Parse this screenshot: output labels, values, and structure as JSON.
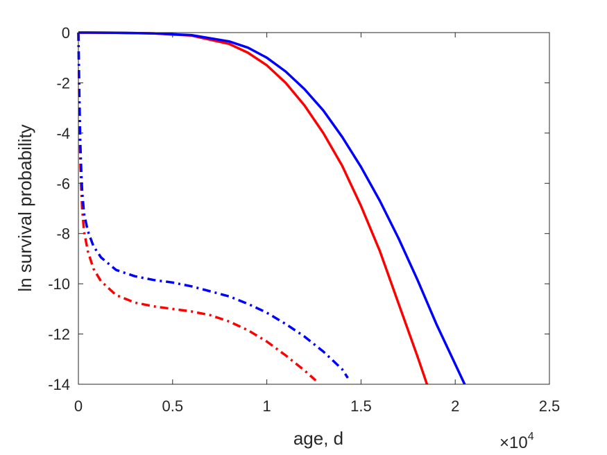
{
  "chart_data": {
    "type": "line",
    "xlabel": "age, d",
    "ylabel": "ln survival probability",
    "x_multiplier": {
      "base": "×10",
      "exponent": "4"
    },
    "xlim": [
      0,
      25000
    ],
    "ylim": [
      -14,
      0
    ],
    "xticks": [
      0,
      5000,
      10000,
      15000,
      20000,
      25000
    ],
    "xtick_labels": [
      "0",
      "0.5",
      "1",
      "1.5",
      "2",
      "2.5"
    ],
    "yticks": [
      0,
      -2,
      -4,
      -6,
      -8,
      -10,
      -12,
      -14
    ],
    "ytick_labels": [
      "0",
      "-2",
      "-4",
      "-6",
      "-8",
      "-10",
      "-12",
      "-14"
    ],
    "grid": false,
    "series": [
      {
        "color": "#ff0000",
        "style": "solid",
        "x": [
          0,
          2000,
          4000,
          6000,
          8000,
          9000,
          10000,
          11000,
          12000,
          13000,
          14000,
          15000,
          16000,
          17000,
          18000,
          18500
        ],
        "y": [
          0,
          -0.005,
          -0.03,
          -0.12,
          -0.45,
          -0.8,
          -1.3,
          -2.0,
          -2.9,
          -4.0,
          -5.3,
          -6.9,
          -8.7,
          -10.8,
          -12.9,
          -14.0
        ]
      },
      {
        "color": "#0000ff",
        "style": "solid",
        "x": [
          0,
          2000,
          4000,
          6000,
          8000,
          9000,
          10000,
          11000,
          12000,
          13000,
          14000,
          15000,
          16000,
          17000,
          18000,
          19000,
          20000,
          20500
        ],
        "y": [
          0,
          -0.005,
          -0.03,
          -0.1,
          -0.35,
          -0.6,
          -1.0,
          -1.55,
          -2.25,
          -3.1,
          -4.15,
          -5.35,
          -6.7,
          -8.2,
          -9.85,
          -11.6,
          -13.2,
          -14.0
        ]
      },
      {
        "color": "#ff0000",
        "style": "dashdot",
        "x": [
          0,
          50,
          100,
          150,
          200,
          300,
          500,
          800,
          1200,
          2000,
          3000,
          4000,
          5000,
          6000,
          7000,
          8000,
          9000,
          10000,
          11000,
          12000,
          12600
        ],
        "y": [
          0,
          -3.0,
          -5.0,
          -6.2,
          -7.0,
          -7.9,
          -8.7,
          -9.4,
          -9.9,
          -10.45,
          -10.75,
          -10.9,
          -11.0,
          -11.1,
          -11.25,
          -11.5,
          -11.85,
          -12.3,
          -12.85,
          -13.45,
          -13.85
        ]
      },
      {
        "color": "#0000ff",
        "style": "dashdot",
        "x": [
          0,
          50,
          100,
          150,
          200,
          300,
          500,
          800,
          1200,
          2000,
          3000,
          4000,
          5000,
          6000,
          7000,
          8000,
          9000,
          10000,
          11000,
          12000,
          13000,
          14000,
          14300
        ],
        "y": [
          0,
          -2.5,
          -4.3,
          -5.5,
          -6.3,
          -7.2,
          -7.9,
          -8.5,
          -8.95,
          -9.45,
          -9.7,
          -9.85,
          -9.95,
          -10.1,
          -10.3,
          -10.5,
          -10.8,
          -11.15,
          -11.6,
          -12.1,
          -12.7,
          -13.4,
          -13.75
        ]
      }
    ]
  }
}
